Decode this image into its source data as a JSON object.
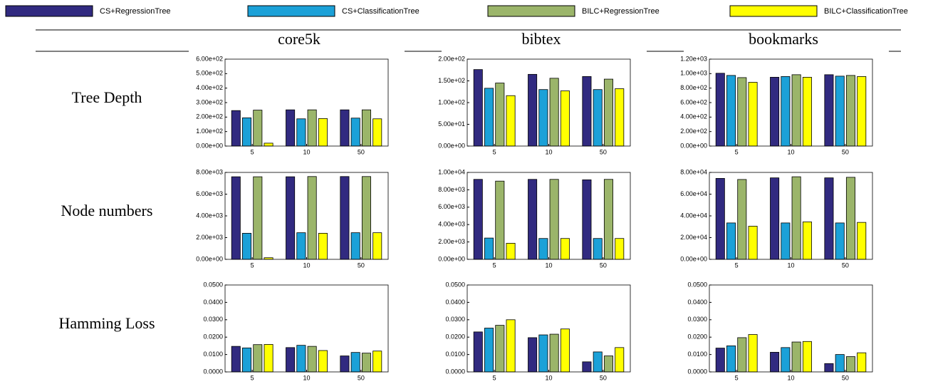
{
  "legend": [
    {
      "name": "CS+RegressionTree",
      "color": "#312a80"
    },
    {
      "name": "CS+ClassificationTree",
      "color": "#1ba1d8"
    },
    {
      "name": "BILC+RegressionTree",
      "color": "#9bb56a"
    },
    {
      "name": "BILC+ClassificationTree",
      "color": "#ffff00"
    }
  ],
  "columns": [
    "core5k",
    "bibtex",
    "bookmarks"
  ],
  "rows": [
    "Tree Depth",
    "Node numbers",
    "Hamming Loss"
  ],
  "chart_data": [
    {
      "type": "bar",
      "categories": [
        "5",
        "10",
        "50"
      ],
      "ylim": [
        0,
        600
      ],
      "yticks": [
        {
          "value": 0,
          "label": "0.00e+00"
        },
        {
          "value": 100,
          "label": "1.00e+02"
        },
        {
          "value": 200,
          "label": "2.00e+02"
        },
        {
          "value": 300,
          "label": "3.00e+02"
        },
        {
          "value": 400,
          "label": "4.00e+02"
        },
        {
          "value": 500,
          "label": "5.00e+02"
        },
        {
          "value": 600,
          "label": "6.00e+02"
        }
      ],
      "series": [
        {
          "values": [
            245,
            250,
            250
          ]
        },
        {
          "values": [
            195,
            188,
            193
          ]
        },
        {
          "values": [
            248,
            250,
            250
          ]
        },
        {
          "values": [
            20,
            190,
            188
          ]
        }
      ]
    },
    {
      "type": "bar",
      "categories": [
        "5",
        "10",
        "50"
      ],
      "ylim": [
        0,
        200
      ],
      "yticks": [
        {
          "value": 0,
          "label": "0.00e+00"
        },
        {
          "value": 50,
          "label": "5.00e+01"
        },
        {
          "value": 100,
          "label": "1.00e+02"
        },
        {
          "value": 150,
          "label": "1.50e+02"
        },
        {
          "value": 200,
          "label": "2.00e+02"
        }
      ],
      "series": [
        {
          "values": [
            176,
            165,
            160
          ]
        },
        {
          "values": [
            133,
            130,
            130
          ]
        },
        {
          "values": [
            145,
            156,
            154
          ]
        },
        {
          "values": [
            116,
            127,
            132
          ]
        }
      ]
    },
    {
      "type": "bar",
      "categories": [
        "5",
        "10",
        "50"
      ],
      "ylim": [
        0,
        1200
      ],
      "yticks": [
        {
          "value": 0,
          "label": "0.00e+00"
        },
        {
          "value": 200,
          "label": "2.00e+02"
        },
        {
          "value": 400,
          "label": "4.00e+02"
        },
        {
          "value": 600,
          "label": "6.00e+02"
        },
        {
          "value": 800,
          "label": "8.00e+02"
        },
        {
          "value": 1000,
          "label": "1.00e+03"
        },
        {
          "value": 1200,
          "label": "1.20e+03"
        }
      ],
      "series": [
        {
          "values": [
            1005,
            950,
            985
          ]
        },
        {
          "values": [
            975,
            960,
            965
          ]
        },
        {
          "values": [
            945,
            985,
            975
          ]
        },
        {
          "values": [
            880,
            950,
            960
          ]
        }
      ]
    },
    {
      "type": "bar",
      "categories": [
        "5",
        "10",
        "50"
      ],
      "ylim": [
        0,
        8000
      ],
      "yticks": [
        {
          "value": 0,
          "label": "0.00e+00"
        },
        {
          "value": 2000,
          "label": "2.00e+03"
        },
        {
          "value": 4000,
          "label": "4.00e+03"
        },
        {
          "value": 6000,
          "label": "6.00e+03"
        },
        {
          "value": 8000,
          "label": "8.00e+03"
        }
      ],
      "series": [
        {
          "values": [
            7600,
            7600,
            7620
          ]
        },
        {
          "values": [
            2400,
            2450,
            2450
          ]
        },
        {
          "values": [
            7600,
            7620,
            7620
          ]
        },
        {
          "values": [
            150,
            2400,
            2450
          ]
        }
      ]
    },
    {
      "type": "bar",
      "categories": [
        "5",
        "10",
        "50"
      ],
      "ylim": [
        0,
        10000
      ],
      "yticks": [
        {
          "value": 0,
          "label": "0.00e+00"
        },
        {
          "value": 2000,
          "label": "2.00e+03"
        },
        {
          "value": 4000,
          "label": "4.00e+03"
        },
        {
          "value": 6000,
          "label": "6.00e+03"
        },
        {
          "value": 8000,
          "label": "8.00e+03"
        },
        {
          "value": 10000,
          "label": "1.00e+04"
        }
      ],
      "series": [
        {
          "values": [
            9200,
            9200,
            9150
          ]
        },
        {
          "values": [
            2450,
            2400,
            2400
          ]
        },
        {
          "values": [
            9000,
            9200,
            9200
          ]
        },
        {
          "values": [
            1850,
            2400,
            2400
          ]
        }
      ]
    },
    {
      "type": "bar",
      "categories": [
        "5",
        "10",
        "50"
      ],
      "ylim": [
        0,
        80000
      ],
      "yticks": [
        {
          "value": 0,
          "label": "0.00e+00"
        },
        {
          "value": 20000,
          "label": "2.00e+04"
        },
        {
          "value": 40000,
          "label": "4.00e+04"
        },
        {
          "value": 60000,
          "label": "6.00e+04"
        },
        {
          "value": 80000,
          "label": "8.00e+04"
        }
      ],
      "series": [
        {
          "values": [
            74500,
            75000,
            75000
          ]
        },
        {
          "values": [
            33500,
            33500,
            33500
          ]
        },
        {
          "values": [
            73500,
            76000,
            75500
          ]
        },
        {
          "values": [
            30500,
            34500,
            34000
          ]
        }
      ]
    },
    {
      "type": "bar",
      "categories": [
        "5",
        "10",
        "50"
      ],
      "ylim": [
        0,
        0.05
      ],
      "yticks": [
        {
          "value": 0,
          "label": "0.0000"
        },
        {
          "value": 0.01,
          "label": "0.0100"
        },
        {
          "value": 0.02,
          "label": "0.0200"
        },
        {
          "value": 0.03,
          "label": "0.0300"
        },
        {
          "value": 0.04,
          "label": "0.0400"
        },
        {
          "value": 0.05,
          "label": "0.0500"
        }
      ],
      "series": [
        {
          "values": [
            0.0147,
            0.014,
            0.0092
          ]
        },
        {
          "values": [
            0.0138,
            0.0153,
            0.0112
          ]
        },
        {
          "values": [
            0.0157,
            0.0147,
            0.0108
          ]
        },
        {
          "values": [
            0.0158,
            0.0123,
            0.012
          ]
        }
      ]
    },
    {
      "type": "bar",
      "categories": [
        "5",
        "10",
        "50"
      ],
      "ylim": [
        0,
        0.05
      ],
      "yticks": [
        {
          "value": 0,
          "label": "0.0000"
        },
        {
          "value": 0.01,
          "label": "0.0100"
        },
        {
          "value": 0.02,
          "label": "0.0200"
        },
        {
          "value": 0.03,
          "label": "0.0300"
        },
        {
          "value": 0.04,
          "label": "0.0400"
        },
        {
          "value": 0.05,
          "label": "0.0500"
        }
      ],
      "series": [
        {
          "values": [
            0.023,
            0.0197,
            0.0058
          ]
        },
        {
          "values": [
            0.0252,
            0.0213,
            0.0115
          ]
        },
        {
          "values": [
            0.0268,
            0.0217,
            0.0092
          ]
        },
        {
          "values": [
            0.03,
            0.0247,
            0.014
          ]
        }
      ]
    },
    {
      "type": "bar",
      "categories": [
        "5",
        "10",
        "50"
      ],
      "ylim": [
        0,
        0.05
      ],
      "yticks": [
        {
          "value": 0,
          "label": "0.0000"
        },
        {
          "value": 0.01,
          "label": "0.0100"
        },
        {
          "value": 0.02,
          "label": "0.0200"
        },
        {
          "value": 0.03,
          "label": "0.0300"
        },
        {
          "value": 0.04,
          "label": "0.0400"
        },
        {
          "value": 0.05,
          "label": "0.0500"
        }
      ],
      "series": [
        {
          "values": [
            0.0137,
            0.0113,
            0.0048
          ]
        },
        {
          "values": [
            0.015,
            0.014,
            0.01
          ]
        },
        {
          "values": [
            0.0197,
            0.0172,
            0.0088
          ]
        },
        {
          "values": [
            0.0215,
            0.0175,
            0.011
          ]
        }
      ]
    }
  ]
}
